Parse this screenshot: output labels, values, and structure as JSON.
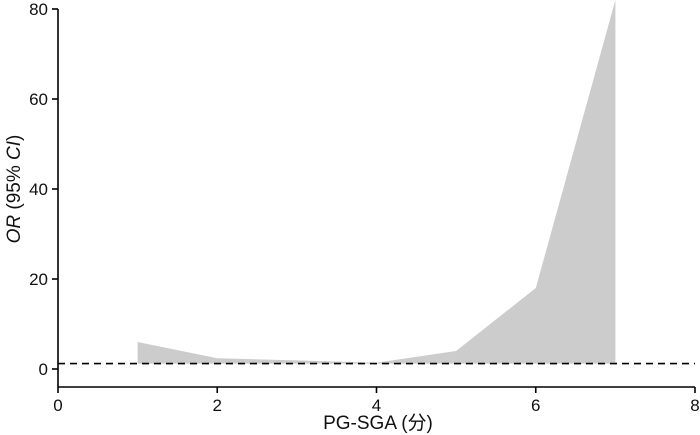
{
  "chart_data": {
    "type": "area",
    "title": "",
    "xlabel": "PG-SGA (分)",
    "ylabel": {
      "or": "OR",
      "open": " (95% ",
      "ci": "CI",
      "close": ")"
    },
    "xlim": [
      0,
      8
    ],
    "ylim": [
      0,
      80
    ],
    "xticks": [
      "0",
      "2",
      "4",
      "6",
      "8"
    ],
    "yticks": [
      "0",
      "20",
      "40",
      "60",
      "80"
    ],
    "reference_line": {
      "y": 1.2,
      "style": "dashed",
      "color": "#000000"
    },
    "band": {
      "x": [
        1,
        2,
        3,
        4,
        5,
        6,
        7
      ],
      "lower": [
        1.2,
        1.2,
        1.2,
        1.2,
        1.2,
        1.2,
        1.2
      ],
      "upper": [
        6.0,
        2.4,
        1.9,
        1.4,
        4.0,
        18.0,
        82.0
      ]
    },
    "grid": false,
    "legend": "none",
    "colors": {
      "band": "#cccccc",
      "axis": "#000000"
    }
  }
}
